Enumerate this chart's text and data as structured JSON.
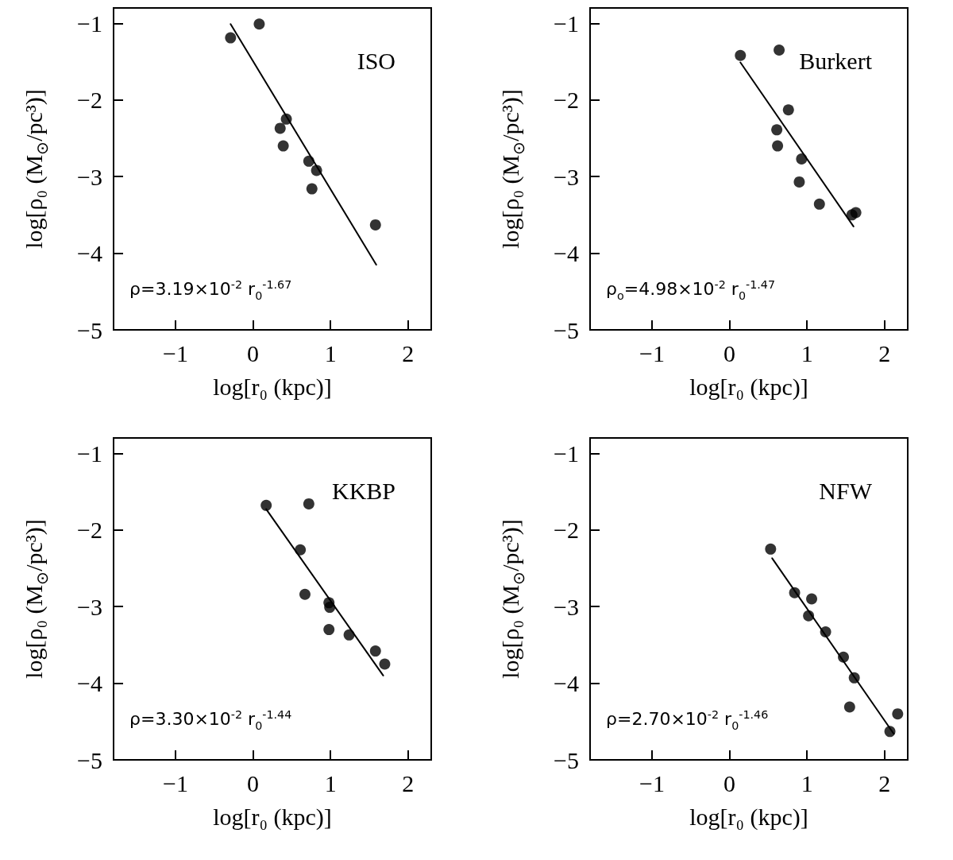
{
  "chart_data": [
    {
      "type": "scatter",
      "title": "ISO",
      "xlabel": "log[r₀ (kpc)]",
      "ylabel": "log[ρ₀ (M$_{⊙}$/pc³)]",
      "annotations": [
        "ρ=3.19×10$^{-2}$ r$_{0}$$^{-1.67}$"
      ],
      "xlim": [
        -1.8,
        2.3
      ],
      "ylim": [
        -5,
        -0.8
      ],
      "xticks": [
        -1,
        0,
        1,
        2
      ],
      "yticks": [
        -5,
        -4,
        -3,
        -2,
        -1
      ],
      "grid": false,
      "marker": "circle",
      "series": [
        {
          "type": "scatter",
          "color": "#000000",
          "x": [
            -0.29,
            0.08,
            0.43,
            0.35,
            0.39,
            0.72,
            0.82,
            0.76,
            1.58
          ],
          "values": [
            -1.19,
            -1.01,
            -2.25,
            -2.37,
            -2.6,
            -2.8,
            -2.92,
            -3.16,
            -3.63
          ]
        },
        {
          "type": "line",
          "color": "#000000",
          "marker": "none",
          "line_style": "solid",
          "x": [
            -0.29,
            1.59
          ],
          "values": [
            -1.01,
            -4.15
          ]
        }
      ]
    },
    {
      "type": "scatter",
      "title": "Burkert",
      "xlabel": "log[r₀ (kpc)]",
      "ylabel": "log[ρ₀ (M$_{⊙}$/pc³)]",
      "annotations": [
        "ρ$_{o}$=4.98×10$^{-2}$ r$_{0}$$^{-1.47}$"
      ],
      "xlim": [
        -1.8,
        2.3
      ],
      "ylim": [
        -5,
        -0.8
      ],
      "xticks": [
        -1,
        0,
        1,
        2
      ],
      "yticks": [
        -5,
        -4,
        -3,
        -2,
        -1
      ],
      "grid": false,
      "marker": "circle",
      "series": [
        {
          "type": "scatter",
          "color": "#000000",
          "x": [
            0.14,
            0.64,
            0.76,
            0.61,
            0.62,
            0.93,
            0.9,
            1.16,
            1.58,
            1.63
          ],
          "values": [
            -1.42,
            -1.35,
            -2.13,
            -2.39,
            -2.6,
            -2.77,
            -3.07,
            -3.36,
            -3.5,
            -3.47
          ]
        },
        {
          "type": "line",
          "color": "#000000",
          "marker": "none",
          "line_style": "solid",
          "x": [
            0.14,
            1.6
          ],
          "values": [
            -1.51,
            -3.65
          ]
        }
      ]
    },
    {
      "type": "scatter",
      "title": "KKBP",
      "xlabel": "log[r₀ (kpc)]",
      "ylabel": "log[ρ₀ (M$_{⊙}$/pc³)]",
      "annotations": [
        "ρ=3.30×10$^{-2}$ r$_{0}$$^{-1.44}$"
      ],
      "xlim": [
        -1.8,
        2.3
      ],
      "ylim": [
        -5,
        -0.8
      ],
      "xticks": [
        -1,
        0,
        1,
        2
      ],
      "yticks": [
        -5,
        -4,
        -3,
        -2,
        -1
      ],
      "grid": false,
      "marker": "circle",
      "series": [
        {
          "type": "scatter",
          "color": "#000000",
          "x": [
            0.17,
            0.72,
            0.61,
            0.67,
            0.98,
            0.99,
            0.98,
            1.24,
            1.58,
            1.7
          ],
          "values": [
            -1.68,
            -1.66,
            -2.26,
            -2.84,
            -2.95,
            -3.01,
            -3.3,
            -3.37,
            -3.58,
            -3.75
          ]
        },
        {
          "type": "line",
          "color": "#000000",
          "marker": "none",
          "line_style": "solid",
          "x": [
            0.17,
            1.68
          ],
          "values": [
            -1.73,
            -3.9
          ]
        }
      ]
    },
    {
      "type": "scatter",
      "title": "NFW",
      "xlabel": "log[r₀ (kpc)]",
      "ylabel": "log[ρ₀ (M$_{⊙}$/pc³)]",
      "annotations": [
        "ρ=2.70×10$^{-2}$ r$_{0}$$^{-1.46}$"
      ],
      "xlim": [
        -1.8,
        2.3
      ],
      "ylim": [
        -5,
        -0.8
      ],
      "xticks": [
        -1,
        0,
        1,
        2
      ],
      "yticks": [
        -5,
        -4,
        -3,
        -2,
        -1
      ],
      "grid": false,
      "marker": "circle",
      "series": [
        {
          "type": "scatter",
          "color": "#000000",
          "x": [
            0.53,
            0.84,
            1.06,
            1.02,
            1.24,
            1.47,
            1.61,
            1.55,
            2.17,
            2.07
          ],
          "values": [
            -2.25,
            -2.82,
            -2.9,
            -3.12,
            -3.33,
            -3.66,
            -3.93,
            -4.31,
            -4.4,
            -4.63
          ]
        },
        {
          "type": "line",
          "color": "#000000",
          "marker": "none",
          "line_style": "solid",
          "x": [
            0.55,
            2.12
          ],
          "values": [
            -2.37,
            -4.66
          ]
        }
      ]
    }
  ]
}
